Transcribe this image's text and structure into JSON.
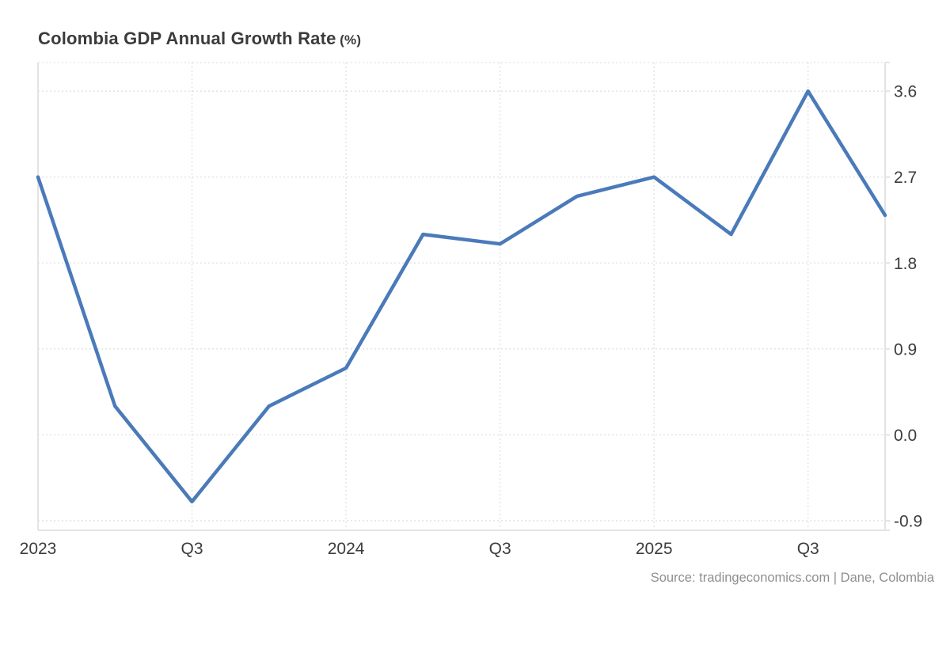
{
  "chart_data": {
    "type": "line",
    "title": "Colombia GDP Annual Growth Rate",
    "unit": "(%)",
    "x": [
      "2023 Q1",
      "2023 Q2",
      "2023 Q3",
      "2023 Q4",
      "2024 Q1",
      "2024 Q2",
      "2024 Q3",
      "2024 Q4",
      "2025 Q1",
      "2025 Q2",
      "2025 Q3",
      "2025 Q4"
    ],
    "values": [
      2.7,
      0.3,
      -0.7,
      0.3,
      0.7,
      2.1,
      2.0,
      2.5,
      2.7,
      2.1,
      3.6,
      2.3
    ],
    "x_tick_indices": [
      0,
      2,
      4,
      6,
      8,
      10
    ],
    "x_tick_labels": [
      "2023",
      "Q3",
      "2024",
      "Q3",
      "2025",
      "Q3"
    ],
    "x_grid_indices": [
      2,
      4,
      6,
      8,
      10
    ],
    "y_ticks": [
      3.6,
      2.7,
      1.8,
      0.9,
      0.0,
      -0.9
    ],
    "y_tick_labels": [
      "3.6",
      "2.7",
      "1.8",
      "0.9",
      "0.0",
      "-0.9"
    ],
    "ylim": [
      -1.0,
      3.9
    ],
    "line_color": "#4a7ab9",
    "grid_color": "#e1e1e1",
    "border_color": "#e3e3e3",
    "tick_label_color": "#3c3c3c",
    "grid": "dotted",
    "legend": "none",
    "xlabel": "",
    "ylabel": ""
  },
  "source": {
    "text": "Source: tradingeconomics.com | Dane, Colombia"
  }
}
